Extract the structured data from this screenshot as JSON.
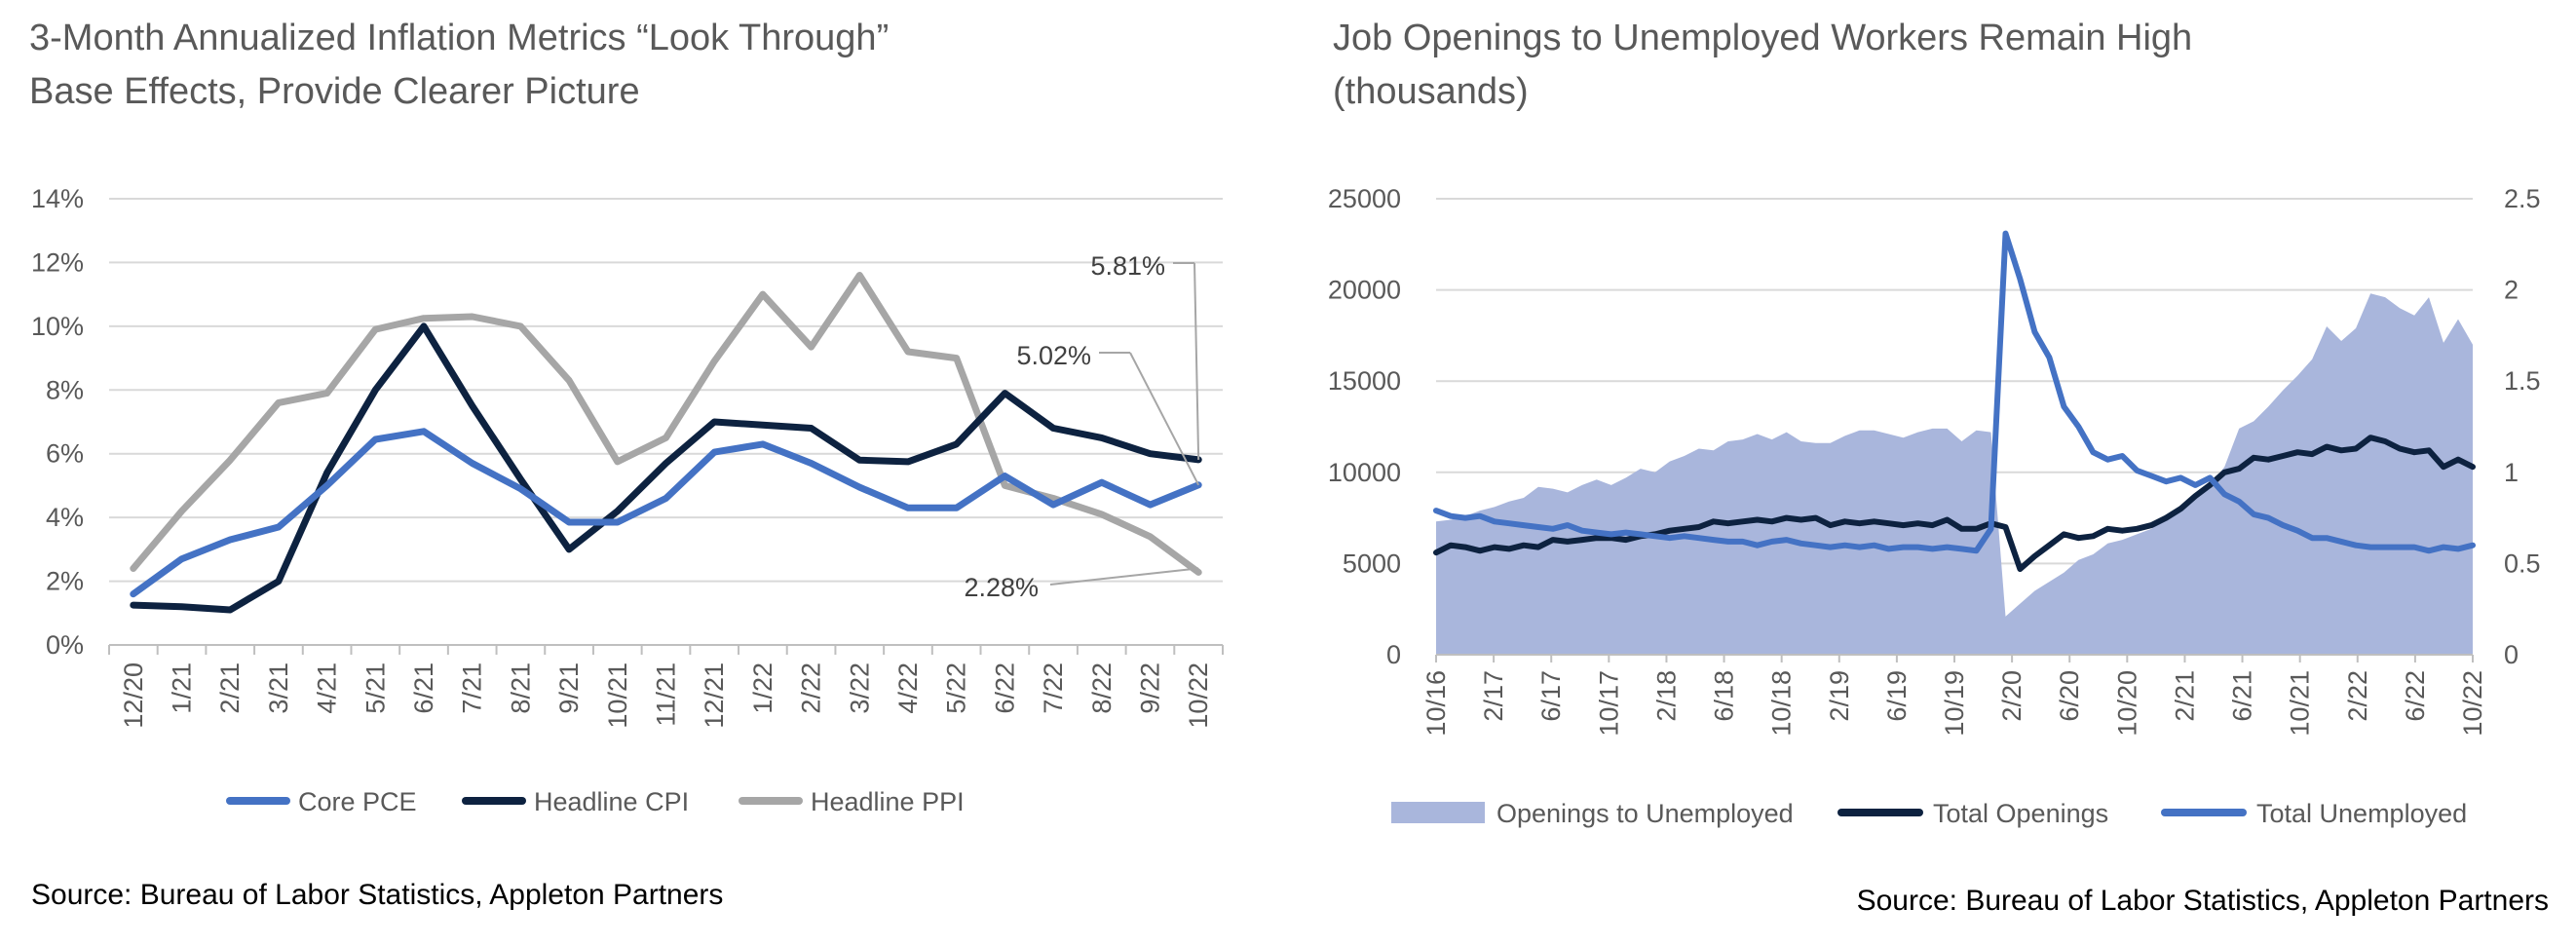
{
  "chart_data": [
    {
      "type": "line",
      "title": "3-Month Annualized Inflation Metrics “Look Through” Base Effects, Provide Clearer Picture",
      "title_lines": [
        "3-Month Annualized Inflation Metrics “Look Through”",
        "Base Effects, Provide Clearer Picture"
      ],
      "source": "Source: Bureau of Labor Statistics, Appleton Partners",
      "categories": [
        "12/20",
        "1/21",
        "2/21",
        "3/21",
        "4/21",
        "5/21",
        "6/21",
        "7/21",
        "8/21",
        "9/21",
        "10/21",
        "11/21",
        "12/21",
        "1/22",
        "2/22",
        "3/22",
        "4/22",
        "5/22",
        "6/22",
        "7/22",
        "8/22",
        "9/22",
        "10/22"
      ],
      "yticks": [
        "0%",
        "2%",
        "4%",
        "6%",
        "8%",
        "10%",
        "12%",
        "14%"
      ],
      "ylim": [
        0,
        14
      ],
      "grid": true,
      "legend_position": "bottom",
      "series": [
        {
          "name": "Core PCE",
          "color": "#4472c4",
          "values": [
            1.6,
            2.7,
            3.3,
            3.7,
            5.0,
            6.45,
            6.7,
            5.7,
            4.9,
            3.85,
            3.85,
            4.6,
            6.05,
            6.3,
            5.7,
            4.95,
            4.3,
            4.3,
            5.3,
            4.4,
            5.1,
            4.4,
            5.02
          ]
        },
        {
          "name": "Headline CPI",
          "color": "#0d2240",
          "values": [
            1.25,
            1.2,
            1.1,
            2.0,
            5.4,
            8.0,
            10.0,
            7.5,
            5.2,
            3.0,
            4.2,
            5.7,
            7.0,
            6.9,
            6.8,
            5.8,
            5.75,
            6.3,
            7.9,
            6.8,
            6.5,
            6.0,
            5.81
          ]
        },
        {
          "name": "Headline PPI",
          "color": "#a6a6a6",
          "values": [
            2.4,
            4.2,
            5.8,
            7.6,
            7.9,
            9.9,
            10.25,
            10.3,
            10.0,
            8.3,
            5.75,
            6.5,
            8.9,
            11.0,
            9.35,
            11.6,
            9.2,
            9.0,
            5.0,
            4.6,
            4.1,
            3.4,
            2.28
          ]
        }
      ],
      "annotations": [
        {
          "text": "5.81%",
          "series": "Headline CPI"
        },
        {
          "text": "5.02%",
          "series": "Core PCE"
        },
        {
          "text": "2.28%",
          "series": "Headline PPI"
        }
      ]
    },
    {
      "type": "area",
      "title": "Job Openings to Unemployed Workers Remain High (thousands)",
      "title_lines": [
        "Job Openings to Unemployed Workers Remain High",
        "(thousands)"
      ],
      "source": "Source: Bureau of Labor Statistics, Appleton Partners",
      "x_tick_labels": [
        "10/16",
        "2/17",
        "6/17",
        "10/17",
        "2/18",
        "6/18",
        "10/18",
        "2/19",
        "6/19",
        "10/19",
        "2/20",
        "6/20",
        "10/20",
        "2/21",
        "6/21",
        "10/21",
        "2/22",
        "6/22",
        "10/22"
      ],
      "y_left_ticks": [
        "0",
        "5000",
        "10000",
        "15000",
        "20000",
        "25000"
      ],
      "y_left_lim": [
        0,
        25000
      ],
      "y_right_ticks": [
        "0",
        "0.5",
        "1",
        "1.5",
        "2",
        "2.5"
      ],
      "y_right_lim": [
        0,
        2.5
      ],
      "grid": true,
      "legend_position": "bottom",
      "series": [
        {
          "name": "Openings to Unemployed",
          "axis": "right",
          "type": "area",
          "color": "#a9b6dc",
          "values": [
            0.73,
            0.74,
            0.76,
            0.79,
            0.81,
            0.84,
            0.86,
            0.92,
            0.91,
            0.89,
            0.93,
            0.96,
            0.93,
            0.97,
            1.02,
            1.0,
            1.06,
            1.09,
            1.13,
            1.12,
            1.17,
            1.18,
            1.21,
            1.18,
            1.22,
            1.17,
            1.16,
            1.16,
            1.2,
            1.23,
            1.23,
            1.21,
            1.19,
            1.22,
            1.24,
            1.24,
            1.17,
            1.23,
            1.22,
            0.21,
            0.28,
            0.35,
            0.4,
            0.45,
            0.52,
            0.55,
            0.61,
            0.63,
            0.66,
            0.69,
            0.75,
            0.82,
            0.88,
            0.93,
            1.03,
            1.24,
            1.28,
            1.36,
            1.45,
            1.53,
            1.62,
            1.8,
            1.72,
            1.79,
            1.98,
            1.96,
            1.9,
            1.86,
            1.96,
            1.71,
            1.84,
            1.7
          ]
        },
        {
          "name": "Total Openings",
          "axis": "left",
          "type": "line",
          "color": "#0d2240",
          "values": [
            5600,
            6000,
            5900,
            5700,
            5900,
            5800,
            6000,
            5900,
            6300,
            6200,
            6300,
            6400,
            6400,
            6300,
            6500,
            6600,
            6800,
            6900,
            7000,
            7300,
            7200,
            7300,
            7400,
            7300,
            7500,
            7400,
            7500,
            7100,
            7300,
            7200,
            7300,
            7200,
            7100,
            7200,
            7100,
            7400,
            6900,
            6900,
            7200,
            7000,
            4700,
            5400,
            6000,
            6600,
            6400,
            6500,
            6900,
            6800,
            6900,
            7100,
            7500,
            8000,
            8700,
            9300,
            10000,
            10200,
            10800,
            10700,
            10900,
            11100,
            11000,
            11400,
            11200,
            11300,
            11900,
            11700,
            11300,
            11100,
            11200,
            10300,
            10700,
            10300
          ]
        },
        {
          "name": "Total Unemployed",
          "axis": "left",
          "type": "line",
          "color": "#4472c4",
          "values": [
            7900,
            7600,
            7500,
            7600,
            7300,
            7200,
            7100,
            7000,
            6900,
            7100,
            6800,
            6700,
            6600,
            6700,
            6600,
            6500,
            6400,
            6500,
            6400,
            6300,
            6200,
            6200,
            6000,
            6200,
            6300,
            6100,
            6000,
            5900,
            6000,
            5900,
            6000,
            5800,
            5900,
            5900,
            5800,
            5900,
            5800,
            5700,
            6900,
            23100,
            20600,
            17700,
            16300,
            13600,
            12500,
            11100,
            10700,
            10900,
            10100,
            9800,
            9500,
            9700,
            9300,
            9700,
            8800,
            8400,
            7700,
            7500,
            7100,
            6800,
            6400,
            6400,
            6200,
            6000,
            5900,
            5900,
            5900,
            5900,
            5700,
            5900,
            5800,
            6000
          ]
        }
      ]
    }
  ]
}
